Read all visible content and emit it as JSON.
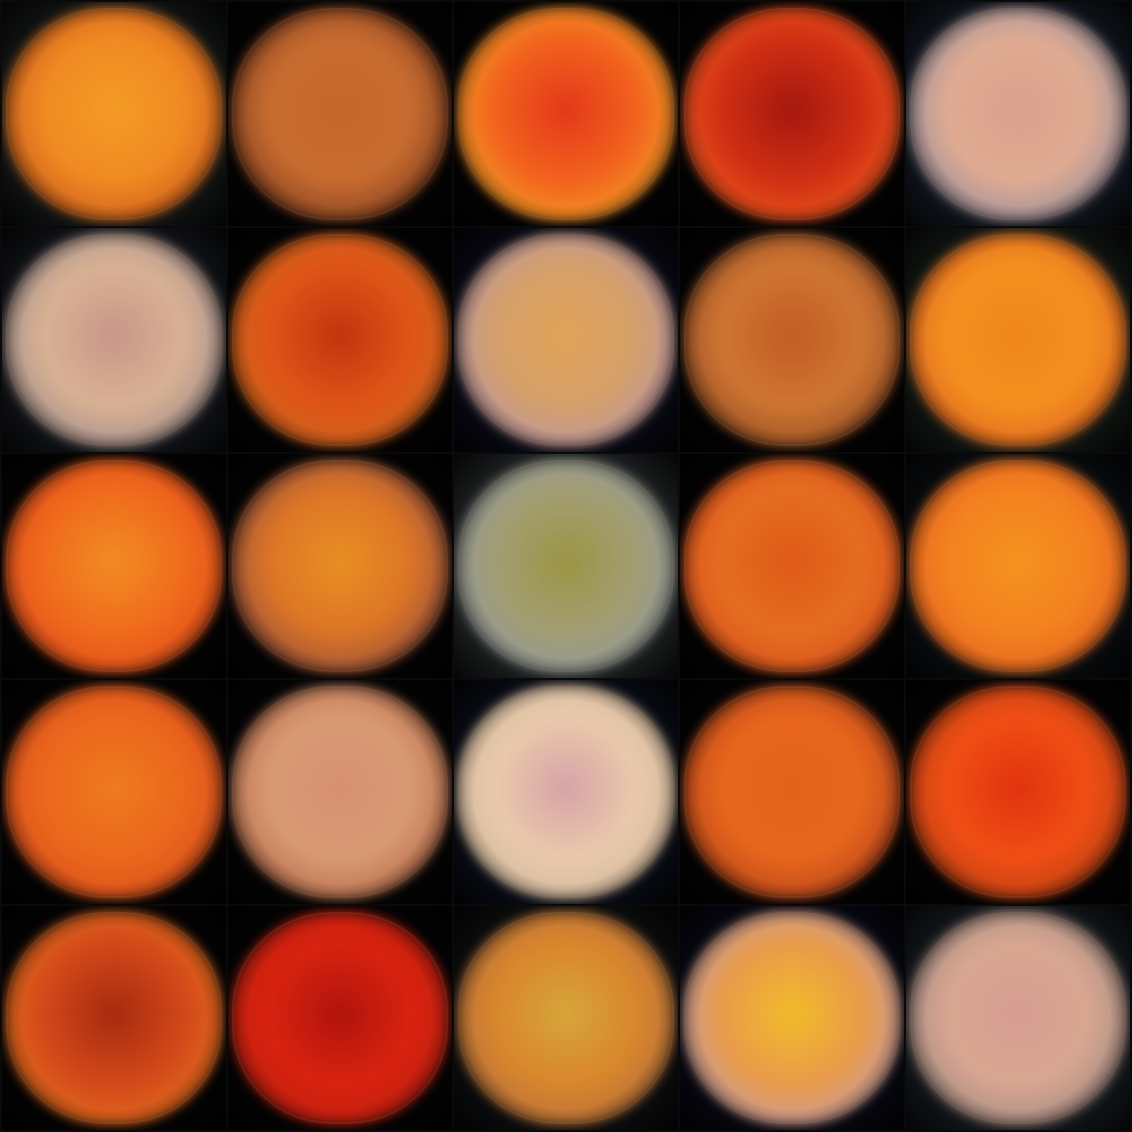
{
  "grid": {
    "rows": 5,
    "cols": 5,
    "background": "#000000"
  },
  "tiles": [
    {
      "center": "#f39a25",
      "mid": "#f08a22",
      "edge": "#c8581a",
      "bg": "#1b2220"
    },
    {
      "center": "#c5672c",
      "mid": "#c86c30",
      "edge": "#7a3a1d",
      "bg": "#060606"
    },
    {
      "center": "#e3381a",
      "mid": "#f2621d",
      "edge": "#f2a127",
      "bg": "#050505"
    },
    {
      "center": "#a4170f",
      "mid": "#cf2f13",
      "edge": "#ee5a1e",
      "bg": "#050505"
    },
    {
      "center": "#d9a08b",
      "mid": "#e0ab92",
      "edge": "#8f8a9b",
      "bg": "#1a2230"
    },
    {
      "center": "#c89688",
      "mid": "#d9b193",
      "edge": "#9a8a8a",
      "bg": "#1a1f27"
    },
    {
      "center": "#c3330f",
      "mid": "#df5417",
      "edge": "#c8651d",
      "bg": "#050505"
    },
    {
      "center": "#e2a357",
      "mid": "#d5a06b",
      "edge": "#b493a7",
      "bg": "#0d0f1f"
    },
    {
      "center": "#c15c23",
      "mid": "#cf7532",
      "edge": "#8e4a22",
      "bg": "#050505"
    },
    {
      "center": "#f0861c",
      "mid": "#f3901f",
      "edge": "#de6020",
      "bg": "#1b241e"
    },
    {
      "center": "#f18c23",
      "mid": "#f06b1c",
      "edge": "#e04a1a",
      "bg": "#050505"
    },
    {
      "center": "#e98f22",
      "mid": "#dc7526",
      "edge": "#8d4b3f",
      "bg": "#050505"
    },
    {
      "center": "#9b9543",
      "mid": "#a39d73",
      "edge": "#8f9aa3",
      "bg": "#2f3436"
    },
    {
      "center": "#df5a17",
      "mid": "#e46d1f",
      "edge": "#d84e1d",
      "bg": "#050505"
    },
    {
      "center": "#f5921f",
      "mid": "#f3821f",
      "edge": "#e25f1e",
      "bg": "#0d1318"
    },
    {
      "center": "#ef7b1e",
      "mid": "#eb671c",
      "edge": "#d94d1c",
      "bg": "#050505"
    },
    {
      "center": "#d69070",
      "mid": "#d89a74",
      "edge": "#b36745",
      "bg": "#060606"
    },
    {
      "center": "#d6a2a8",
      "mid": "#eac9aa",
      "edge": "#cdb79b",
      "bg": "#0d1321"
    },
    {
      "center": "#e2621b",
      "mid": "#e8661c",
      "edge": "#b0401a",
      "bg": "#050505"
    },
    {
      "center": "#e1330f",
      "mid": "#f04e14",
      "edge": "#b53e12",
      "bg": "#050505"
    },
    {
      "center": "#a52a0e",
      "mid": "#d3481a",
      "edge": "#e2721c",
      "bg": "#050505"
    },
    {
      "center": "#b0130d",
      "mid": "#d8230f",
      "edge": "#bb1d0f",
      "bg": "#050505"
    },
    {
      "center": "#d6a53a",
      "mid": "#d9862c",
      "edge": "#b06b3c",
      "bg": "#121416"
    },
    {
      "center": "#f2bb2a",
      "mid": "#e89b49",
      "edge": "#c29bab",
      "bg": "#0a0d1c"
    },
    {
      "center": "#d69d91",
      "mid": "#d8a690",
      "edge": "#9c8780",
      "bg": "#1f262d"
    }
  ]
}
